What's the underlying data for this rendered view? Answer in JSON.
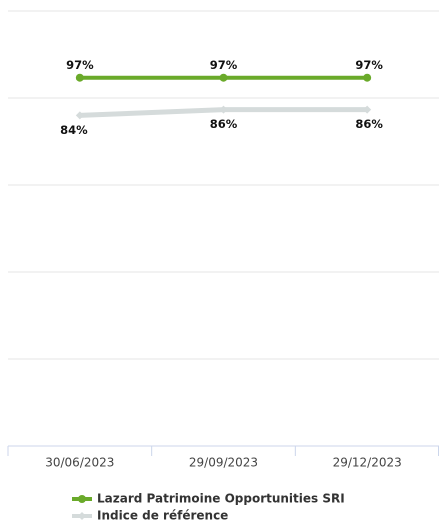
{
  "chart_data": {
    "type": "line",
    "categories": [
      "30/06/2023",
      "29/09/2023",
      "29/12/2023"
    ],
    "series": [
      {
        "name": "Lazard Patrimoine Opportunities SRI",
        "color": "#6aaa2a",
        "values": [
          97,
          97,
          97
        ],
        "value_labels": [
          "97%",
          "97%",
          "97%"
        ]
      },
      {
        "name": "Indice de référence",
        "color": "#d5dbdb",
        "values": [
          84,
          86,
          86
        ],
        "value_labels": [
          "84%",
          "86%",
          "86%"
        ]
      }
    ],
    "ylim": [
      -30,
      120
    ],
    "yticks": [
      0,
      30,
      60,
      90,
      120
    ],
    "grid": true
  }
}
